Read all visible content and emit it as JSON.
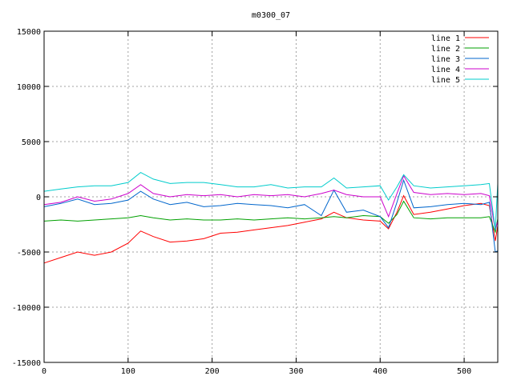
{
  "chart_data": {
    "type": "line",
    "title": "m0300_07",
    "xlabel": "",
    "ylabel": "",
    "xlim": [
      0,
      540
    ],
    "ylim": [
      -15000,
      15000
    ],
    "xticks": [
      0,
      100,
      200,
      300,
      400,
      500
    ],
    "yticks": [
      -15000,
      -10000,
      -5000,
      0,
      5000,
      10000,
      15000
    ],
    "grid": true,
    "legend_position": "top-right",
    "series": [
      {
        "name": "line 1",
        "color": "#ff0000",
        "x": [
          0,
          20,
          40,
          60,
          80,
          100,
          115,
          130,
          150,
          170,
          190,
          210,
          230,
          250,
          270,
          290,
          310,
          330,
          345,
          360,
          380,
          400,
          410,
          420,
          428,
          440,
          460,
          480,
          500,
          520,
          530,
          537,
          540
        ],
        "y": [
          -6000,
          -5500,
          -5000,
          -5300,
          -5000,
          -4200,
          -3100,
          -3600,
          -4100,
          -4000,
          -3800,
          -3300,
          -3200,
          -3000,
          -2800,
          -2600,
          -2300,
          -2000,
          -1400,
          -1900,
          -2100,
          -2200,
          -2900,
          -1400,
          100,
          -1600,
          -1400,
          -1100,
          -800,
          -600,
          -800,
          -4000,
          -2600
        ]
      },
      {
        "name": "line 2",
        "color": "#00a000",
        "x": [
          0,
          20,
          40,
          60,
          80,
          100,
          115,
          130,
          150,
          170,
          190,
          210,
          230,
          250,
          270,
          290,
          310,
          330,
          345,
          360,
          380,
          400,
          410,
          420,
          428,
          440,
          460,
          480,
          500,
          520,
          530,
          537,
          540
        ],
        "y": [
          -2200,
          -2100,
          -2200,
          -2100,
          -2000,
          -1900,
          -1700,
          -1900,
          -2100,
          -2000,
          -2100,
          -2100,
          -2000,
          -2100,
          -2000,
          -1900,
          -2000,
          -1900,
          -1800,
          -1900,
          -1700,
          -1800,
          -2400,
          -1600,
          -400,
          -1900,
          -2000,
          -1900,
          -1900,
          -1900,
          -1800,
          -3200,
          -2000
        ]
      },
      {
        "name": "line 3",
        "color": "#0066cc",
        "x": [
          0,
          20,
          40,
          60,
          80,
          100,
          115,
          130,
          150,
          170,
          190,
          210,
          230,
          250,
          270,
          290,
          310,
          330,
          345,
          360,
          380,
          400,
          410,
          420,
          428,
          440,
          460,
          480,
          500,
          520,
          530,
          537,
          540
        ],
        "y": [
          -900,
          -600,
          -200,
          -700,
          -600,
          -300,
          500,
          -200,
          -700,
          -500,
          -900,
          -800,
          -600,
          -700,
          -800,
          -1000,
          -700,
          -1700,
          600,
          -1400,
          -1200,
          -1800,
          -2800,
          -500,
          1500,
          -1000,
          -900,
          -700,
          -600,
          -700,
          -500,
          -5000,
          -4900
        ]
      },
      {
        "name": "line 4",
        "color": "#cc00cc",
        "x": [
          0,
          20,
          40,
          60,
          80,
          100,
          115,
          130,
          150,
          170,
          190,
          210,
          230,
          250,
          270,
          290,
          310,
          330,
          345,
          360,
          380,
          400,
          410,
          420,
          428,
          440,
          460,
          480,
          500,
          520,
          530,
          537,
          540
        ],
        "y": [
          -700,
          -500,
          0,
          -400,
          -200,
          300,
          1100,
          300,
          0,
          200,
          100,
          200,
          0,
          200,
          100,
          200,
          0,
          300,
          600,
          200,
          0,
          0,
          -1800,
          300,
          1900,
          400,
          200,
          300,
          200,
          300,
          100,
          -3000,
          -2200
        ]
      },
      {
        "name": "line 5",
        "color": "#00cccc",
        "x": [
          0,
          20,
          40,
          60,
          80,
          100,
          115,
          130,
          150,
          170,
          190,
          210,
          230,
          250,
          270,
          290,
          310,
          330,
          345,
          360,
          380,
          400,
          410,
          420,
          428,
          440,
          460,
          480,
          500,
          520,
          530,
          537,
          540
        ],
        "y": [
          500,
          700,
          900,
          1000,
          1000,
          1300,
          2200,
          1600,
          1200,
          1300,
          1300,
          1100,
          900,
          900,
          1100,
          800,
          900,
          900,
          1700,
          800,
          900,
          1000,
          -300,
          900,
          2000,
          1000,
          800,
          900,
          1000,
          1100,
          1200,
          -3000,
          1200
        ]
      }
    ]
  }
}
